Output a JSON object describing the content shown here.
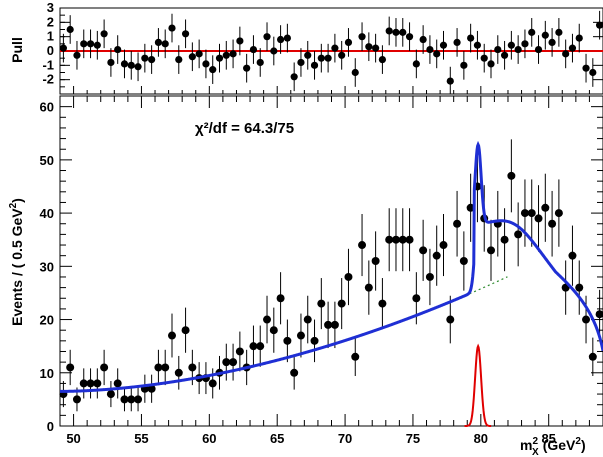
{
  "chart_data": [
    {
      "type": "scatter",
      "panel": "pull",
      "ylabel": "Pull",
      "ylim": [
        -3,
        3
      ],
      "yticks": [
        -2,
        -1,
        0,
        1,
        2,
        3
      ],
      "xlim": [
        49,
        89
      ],
      "grid": false,
      "zero_line_color": "#e00000",
      "x": [
        49.25,
        49.75,
        50.25,
        50.75,
        51.25,
        51.75,
        52.25,
        52.75,
        53.25,
        53.75,
        54.25,
        54.75,
        55.25,
        55.75,
        56.25,
        56.75,
        57.25,
        57.75,
        58.25,
        58.75,
        59.25,
        59.75,
        60.25,
        60.75,
        61.25,
        61.75,
        62.25,
        62.75,
        63.25,
        63.75,
        64.25,
        64.75,
        65.25,
        65.75,
        66.25,
        66.75,
        67.25,
        67.75,
        68.25,
        68.75,
        69.25,
        69.75,
        70.25,
        70.75,
        71.25,
        71.75,
        72.25,
        72.75,
        73.25,
        73.75,
        74.25,
        74.75,
        75.25,
        75.75,
        76.25,
        76.75,
        77.25,
        77.75,
        78.25,
        78.75,
        79.25,
        79.75,
        80.25,
        80.75,
        81.25,
        81.75,
        82.25,
        82.75,
        83.25,
        83.75,
        84.25,
        84.75,
        85.25,
        85.75,
        86.25,
        86.75,
        87.25,
        87.75,
        88.25,
        88.75
      ],
      "values": [
        0.2,
        1.5,
        -0.3,
        0.5,
        0.5,
        0.4,
        1.2,
        -0.8,
        0.1,
        -0.9,
        -1.0,
        -1.1,
        -0.5,
        -0.6,
        0.6,
        0.5,
        1.6,
        -0.6,
        1.2,
        -0.4,
        -0.2,
        -0.9,
        -1.3,
        -0.5,
        -0.3,
        -0.2,
        0.7,
        -1.2,
        0.1,
        -0.8,
        1.0,
        0.0,
        0.8,
        0.9,
        -1.8,
        -0.8,
        -0.3,
        -1.0,
        -0.5,
        -0.5,
        0.2,
        -0.3,
        0.6,
        -1.5,
        1.0,
        0.3,
        0.2,
        -0.6,
        1.4,
        1.3,
        1.3,
        1.0,
        -0.9,
        0.8,
        0.1,
        -0.2,
        0.4,
        -2.1,
        0.6,
        -1.0,
        0.9,
        0.4,
        -0.5,
        -0.9,
        0.1,
        -0.3,
        0.4,
        0.1,
        0.5,
        1.3,
        0.1,
        1.1,
        0.6,
        1.3,
        -0.2,
        0.2,
        0.9,
        -1.2,
        -1.5,
        1.8
      ],
      "errors": 1.0
    },
    {
      "type": "scatter",
      "panel": "main",
      "annotation": "χ²/df = 64.3/75",
      "xlabel_main": "m",
      "xlabel_sup": "2",
      "xlabel_sub": "X",
      "xlabel_units": "(GeV",
      "xlabel_units_sup": "2",
      "xlabel_close": ")",
      "ylabel": "Events / ( 0.5 GeV",
      "ylabel_sup": "2",
      "ylabel_close": ")",
      "xlim": [
        49,
        89
      ],
      "ylim": [
        0,
        62
      ],
      "xticks": [
        50,
        55,
        60,
        65,
        70,
        75,
        80,
        85
      ],
      "yticks": [
        0,
        10,
        20,
        30,
        40,
        50,
        60
      ],
      "grid": false,
      "x": [
        49.25,
        49.75,
        50.25,
        50.75,
        51.25,
        51.75,
        52.25,
        52.75,
        53.25,
        53.75,
        54.25,
        54.75,
        55.25,
        55.75,
        56.25,
        56.75,
        57.25,
        57.75,
        58.25,
        58.75,
        59.25,
        59.75,
        60.25,
        60.75,
        61.25,
        61.75,
        62.25,
        62.75,
        63.25,
        63.75,
        64.25,
        64.75,
        65.25,
        65.75,
        66.25,
        66.75,
        67.25,
        67.75,
        68.25,
        68.75,
        69.25,
        69.75,
        70.25,
        70.75,
        71.25,
        71.75,
        72.25,
        72.75,
        73.25,
        73.75,
        74.25,
        74.75,
        75.25,
        75.75,
        76.25,
        76.75,
        77.25,
        77.75,
        78.25,
        78.75,
        79.25,
        79.75,
        80.25,
        80.75,
        81.25,
        81.75,
        82.25,
        82.75,
        83.25,
        83.75,
        84.25,
        84.75,
        85.25,
        85.75,
        86.25,
        86.75,
        87.25,
        87.75,
        88.25,
        88.75
      ],
      "values": [
        6,
        11,
        5,
        8,
        8,
        8,
        11,
        6,
        8,
        5,
        5,
        5,
        7,
        7,
        11,
        11,
        17,
        10,
        18,
        11,
        9,
        9,
        8,
        10,
        12,
        12,
        14,
        11,
        15,
        15,
        20,
        18,
        24,
        16,
        10,
        17,
        20,
        16,
        23,
        19,
        19,
        23,
        28,
        13,
        34,
        26,
        31,
        23,
        35,
        35,
        35,
        35,
        24,
        33,
        28,
        32,
        34,
        20,
        38,
        31,
        41,
        45,
        39,
        33,
        38,
        35,
        47,
        36,
        40,
        40,
        39,
        41,
        38,
        40,
        26,
        32,
        26,
        20,
        13,
        21
      ]
    }
  ],
  "legend_colors": {
    "points": "#000000",
    "total_fit": "#1f2fd4",
    "signal": "#e00000",
    "background": "#2e8b2e"
  }
}
